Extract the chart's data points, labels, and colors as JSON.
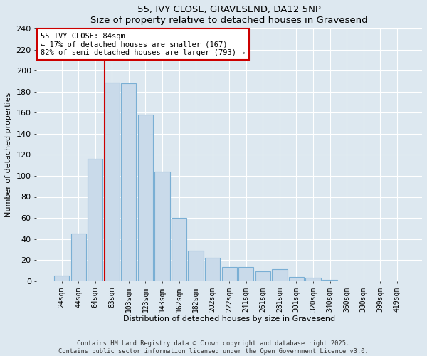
{
  "title": "55, IVY CLOSE, GRAVESEND, DA12 5NP",
  "subtitle": "Size of property relative to detached houses in Gravesend",
  "xlabel": "Distribution of detached houses by size in Gravesend",
  "ylabel": "Number of detached properties",
  "bar_labels": [
    "24sqm",
    "44sqm",
    "64sqm",
    "83sqm",
    "103sqm",
    "123sqm",
    "143sqm",
    "162sqm",
    "182sqm",
    "202sqm",
    "222sqm",
    "241sqm",
    "261sqm",
    "281sqm",
    "301sqm",
    "320sqm",
    "340sqm",
    "360sqm",
    "380sqm",
    "399sqm",
    "419sqm"
  ],
  "bar_values": [
    5,
    45,
    116,
    189,
    188,
    158,
    104,
    60,
    29,
    22,
    13,
    13,
    9,
    11,
    4,
    3,
    1,
    0,
    0,
    0,
    0
  ],
  "bar_color": "#c9daea",
  "bar_edge_color": "#7aafd4",
  "ylim": [
    0,
    240
  ],
  "yticks": [
    0,
    20,
    40,
    60,
    80,
    100,
    120,
    140,
    160,
    180,
    200,
    220,
    240
  ],
  "vline_x_index": 3,
  "vline_color": "#cc0000",
  "annotation_title": "55 IVY CLOSE: 84sqm",
  "annotation_line1": "← 17% of detached houses are smaller (167)",
  "annotation_line2": "82% of semi-detached houses are larger (793) →",
  "annotation_box_color": "#ffffff",
  "annotation_box_edge": "#cc0000",
  "footer_line1": "Contains HM Land Registry data © Crown copyright and database right 2025.",
  "footer_line2": "Contains public sector information licensed under the Open Government Licence v3.0.",
  "bg_color": "#dde8f0",
  "plot_bg_color": "#dde8f0",
  "grid_color": "#ffffff"
}
